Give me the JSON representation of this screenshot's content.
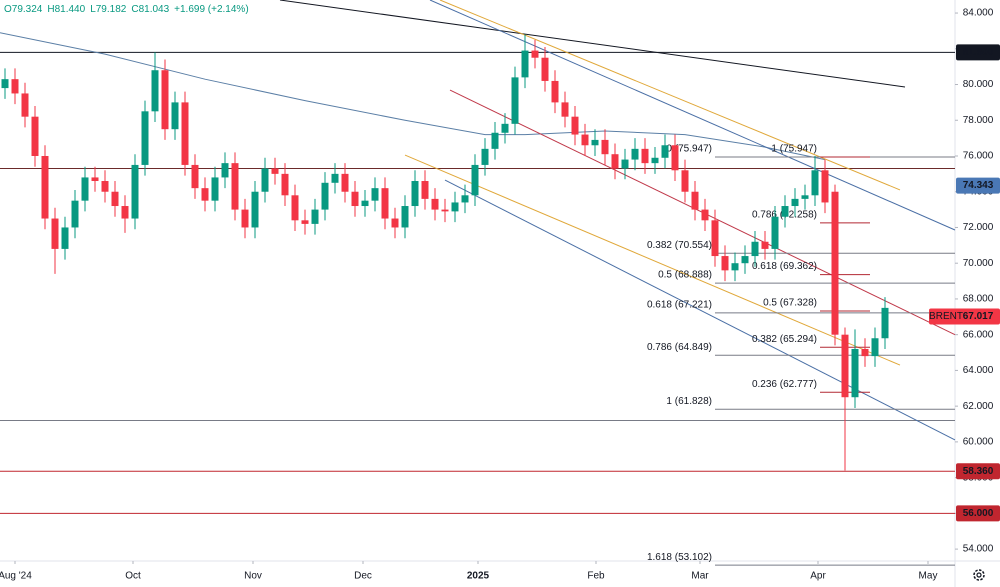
{
  "chart_data": {
    "type": "candlestick",
    "header": [
      "O79.324",
      "H81.440",
      "L79.182",
      "C81.043",
      "+1.699 (+2.14%)"
    ],
    "up_color": "#089981",
    "down_color": "#f23645",
    "xlim": [
      -0.5,
      95
    ],
    "ylim": [
      53.39,
      84.73
    ],
    "xticks": [
      {
        "value": 1,
        "label": "Aug '24"
      },
      {
        "value": 12.8,
        "label": "Oct"
      },
      {
        "value": 24.8,
        "label": "Nov"
      },
      {
        "value": 35.8,
        "label": "Dec"
      },
      {
        "value": 47.3,
        "label": "2025"
      },
      {
        "value": 59.1,
        "label": "Feb"
      },
      {
        "value": 69.5,
        "label": "Mar"
      },
      {
        "value": 81.3,
        "label": "Apr"
      },
      {
        "value": 92.3,
        "label": "May"
      }
    ],
    "yticks": [
      {
        "value": 54,
        "label": "54.000"
      },
      {
        "value": 56,
        "label": "56.000"
      },
      {
        "value": 58,
        "label": "58.000"
      },
      {
        "value": 60,
        "label": "60.000"
      },
      {
        "value": 62,
        "label": "62.000"
      },
      {
        "value": 64,
        "label": "64.000"
      },
      {
        "value": 66,
        "label": "66.000"
      },
      {
        "value": 68,
        "label": "68.000"
      },
      {
        "value": 70,
        "label": "70.000"
      },
      {
        "value": 72,
        "label": "72.000"
      },
      {
        "value": 74,
        "label": "74.000"
      },
      {
        "value": 76,
        "label": "76.000"
      },
      {
        "value": 78,
        "label": "78.000"
      },
      {
        "value": 80,
        "label": "80.000"
      },
      {
        "value": 82,
        "label": "82.000"
      },
      {
        "value": 84,
        "label": "84.000"
      }
    ],
    "open": [
      79.8,
      80.3,
      79.5,
      78.2,
      76,
      72.5,
      70.8,
      72,
      73.5,
      74.8,
      74.6,
      74,
      73.2,
      72.5,
      75.5,
      78.5,
      80.8,
      77.5,
      79,
      75.5,
      74.2,
      73.5,
      74.8,
      75.6,
      73,
      72,
      74,
      75.3,
      75,
      73.8,
      72.4,
      72.2,
      73,
      74.5,
      75,
      74,
      73.2,
      73.5,
      74.2,
      72.5,
      72,
      73.2,
      74.6,
      73.6,
      73,
      72.9,
      73.4,
      73.8,
      75.5,
      76.4,
      77.3,
      77.8,
      80.4,
      81.9,
      81.5,
      80.2,
      79,
      78.2,
      77.2,
      76.6,
      76.9,
      76.1,
      75.3,
      75.8,
      76.4,
      75.6,
      75.9,
      76.6,
      75.2,
      74,
      73,
      72.4,
      70.4,
      69.6,
      70,
      70.4,
      71.2,
      70.8,
      72.6,
      73.2,
      73.6,
      73.8,
      75.2,
      74,
      66,
      62.5,
      65.2,
      64.8,
      65.8
    ],
    "high": [
      80.9,
      80.9,
      80.1,
      78.8,
      76.6,
      73.1,
      72.6,
      74.1,
      75.4,
      75.4,
      75.2,
      74.6,
      73.8,
      76.1,
      79.1,
      81.8,
      81.4,
      79.6,
      79.6,
      76.1,
      74.8,
      75.4,
      76.2,
      76.2,
      73.6,
      74.6,
      75.9,
      75.9,
      75.6,
      74.4,
      73.0,
      73.6,
      75.1,
      75.6,
      75.6,
      74.6,
      74.1,
      74.8,
      74.8,
      73.1,
      73.8,
      75.2,
      75.2,
      74.2,
      73.6,
      74.0,
      74.4,
      76.1,
      77.0,
      77.9,
      78.4,
      81.0,
      82.8,
      82.5,
      82.1,
      80.8,
      79.6,
      78.8,
      77.8,
      77.5,
      77.5,
      76.7,
      76.4,
      77.0,
      77.0,
      76.5,
      77.2,
      77.2,
      75.8,
      74.6,
      73.6,
      73.0,
      71.0,
      70.6,
      71.0,
      71.8,
      71.8,
      73.2,
      73.8,
      74.2,
      74.4,
      76.0,
      75.8,
      74.4,
      66.4,
      66.3,
      65.8,
      66.4,
      68.1
    ],
    "low": [
      79.2,
      78.9,
      77.6,
      75.4,
      71.9,
      69.4,
      70.2,
      71.4,
      72.9,
      74.0,
      73.4,
      72.6,
      71.7,
      71.9,
      74.9,
      77.9,
      76.9,
      76.9,
      74.9,
      73.6,
      72.9,
      72.9,
      74.2,
      72.4,
      71.4,
      71.4,
      73.4,
      74.4,
      73.2,
      71.8,
      71.6,
      71.6,
      72.4,
      73.9,
      73.4,
      72.6,
      72.6,
      72.9,
      71.9,
      71.4,
      71.4,
      72.6,
      73.0,
      72.4,
      72.3,
      72.3,
      72.8,
      73.2,
      74.9,
      75.8,
      76.7,
      77.2,
      79.8,
      80.9,
      79.6,
      78.4,
      77.6,
      76.6,
      76.0,
      76.0,
      75.5,
      74.7,
      74.7,
      75.2,
      75.0,
      75.0,
      75.3,
      74.6,
      73.4,
      72.4,
      71.8,
      69.8,
      69.0,
      69.0,
      69.4,
      69.8,
      70.2,
      70.2,
      72.0,
      72.6,
      73.0,
      73.2,
      72.8,
      65.4,
      58.4,
      61.9,
      64.2,
      64.2,
      65.2
    ],
    "close": [
      80.3,
      79.5,
      78.2,
      76,
      72.5,
      70.8,
      72,
      73.5,
      74.8,
      74.6,
      74,
      73.2,
      72.5,
      75.5,
      78.5,
      80.8,
      77.5,
      79,
      75.5,
      74.2,
      73.5,
      74.8,
      75.6,
      73,
      72,
      74,
      75.3,
      75,
      73.8,
      72.4,
      72.2,
      73,
      74.5,
      75,
      74,
      73.2,
      73.5,
      74.2,
      72.5,
      72,
      73.2,
      74.6,
      73.6,
      73,
      72.9,
      73.4,
      73.8,
      75.5,
      76.4,
      77.3,
      77.8,
      80.4,
      81.9,
      81.5,
      80.2,
      79,
      78.2,
      77.2,
      76.6,
      76.9,
      76.1,
      75.3,
      75.8,
      76.4,
      75.6,
      75.9,
      76.6,
      75.2,
      74,
      73,
      72.4,
      70.4,
      69.6,
      70,
      70.4,
      71.2,
      70.8,
      72.6,
      73.2,
      73.6,
      73.8,
      75.2,
      73.4,
      66,
      62.5,
      65.2,
      64.8,
      65.8,
      67.5
    ],
    "lines": [
      {
        "x": [
          -0.5,
          10,
          20,
          30,
          40,
          48,
          52,
          60,
          68,
          76,
          82
        ],
        "values": [
          82.9,
          81.7,
          80.3,
          79.1,
          78.0,
          77.2,
          77.2,
          77.4,
          77.2,
          76.5,
          75.8
        ],
        "color": "#5b7fa6"
      },
      {
        "x": [
          27.5,
          90
        ],
        "values": [
          84.73,
          79.86
        ],
        "color": "#131722"
      },
      {
        "x": [
          42.5,
          95
        ],
        "values": [
          84.73,
          71.86
        ],
        "color": "#4a6fa5"
      },
      {
        "x": [
          44,
          95
        ],
        "values": [
          74.65,
          60.11
        ],
        "color": "#4a6fa5"
      },
      {
        "x": [
          43.5,
          89.5
        ],
        "values": [
          84.73,
          74.1
        ],
        "color": "#e0a83a"
      },
      {
        "x": [
          40,
          89.5
        ],
        "values": [
          76.05,
          64.3
        ],
        "color": "#e0a83a"
      },
      {
        "x": [
          44.5,
          95
        ],
        "values": [
          79.69,
          66.0
        ],
        "color": "#c0394a"
      }
    ],
    "levels": [
      {
        "value": 81.8,
        "label": "81.800",
        "color": "#131722"
      },
      {
        "value": 75.3,
        "color": "#6b2a2a"
      },
      {
        "value": 61.2,
        "color": "#787b86"
      },
      {
        "value": 58.36,
        "label": "58.360",
        "color": "#c0262f"
      },
      {
        "value": 56,
        "label": "56.000",
        "color": "#c0262f"
      }
    ],
    "price_tags": [
      {
        "value": 74.343,
        "label": "74.343",
        "color": "#4a78b5"
      },
      {
        "value": 67.017,
        "label": "67.017",
        "name": "BRENT",
        "color": "#f23645"
      }
    ],
    "fibs": [
      {
        "x": [
          71,
          95
        ],
        "color": "#787b86",
        "text_color": "#4a4e59",
        "levels": [
          {
            "value": 75.947,
            "label": "0 (75.947)"
          },
          {
            "value": 70.554,
            "label": "0.382 (70.554)"
          },
          {
            "value": 68.888,
            "label": "0.5 (68.888)"
          },
          {
            "value": 67.221,
            "label": "0.618 (67.221)"
          },
          {
            "value": 64.849,
            "label": "0.786 (64.849)"
          },
          {
            "value": 61.828,
            "label": "1 (61.828)"
          },
          {
            "value": 53.102,
            "label": "1.618 (53.102)"
          }
        ]
      },
      {
        "x": [
          81.5,
          86.5
        ],
        "color": "#b22833",
        "text_color": "#b22833",
        "levels": [
          {
            "value": 75.947,
            "label": "1 (75.947)"
          },
          {
            "value": 72.258,
            "label": "0.786 (72.258)"
          },
          {
            "value": 69.362,
            "label": "0.618 (69.362)"
          },
          {
            "value": 67.328,
            "label": "0.5 (67.328)"
          },
          {
            "value": 65.294,
            "label": "0.382 (65.294)"
          },
          {
            "value": 62.777,
            "label": "0.236 (62.777)"
          }
        ]
      }
    ]
  }
}
